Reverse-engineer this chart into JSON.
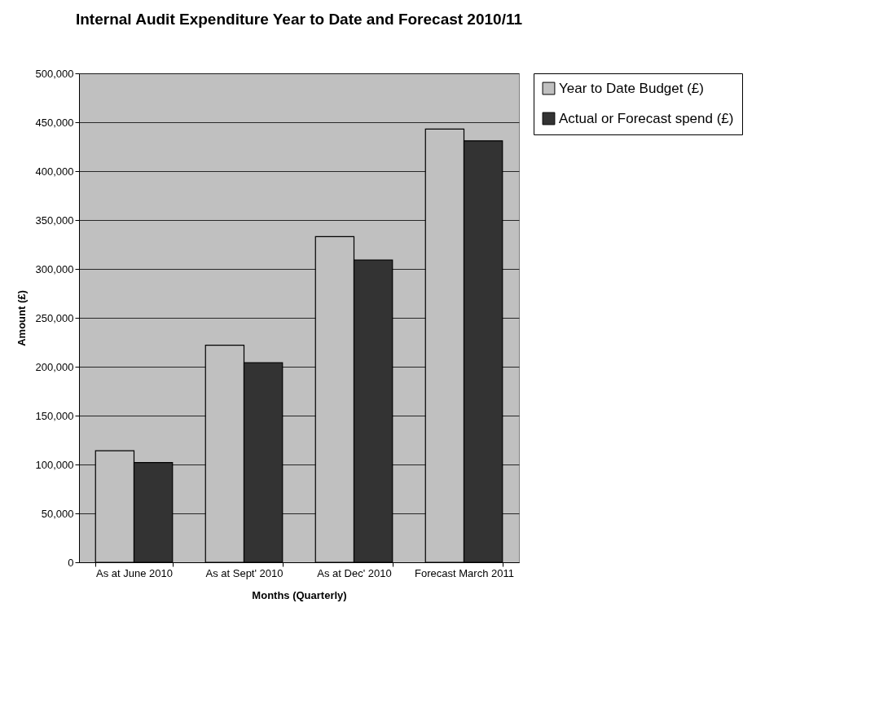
{
  "chart_data": {
    "type": "bar",
    "title": "Internal Audit Expenditure Year to Date and Forecast 2010/11",
    "xlabel": "Months (Quarterly)",
    "ylabel": "Amount (£)",
    "categories": [
      "As at June 2010",
      "As at Sept' 2010",
      "As at Dec' 2010",
      "Forecast March 2011"
    ],
    "series": [
      {
        "name": "Year to Date Budget (£)",
        "color": "#c0c0c0",
        "values": [
          114000,
          222000,
          333000,
          443000
        ]
      },
      {
        "name": "Actual or Forecast spend (£)",
        "color": "#333333",
        "values": [
          102000,
          204000,
          309000,
          431000
        ]
      }
    ],
    "ylim": [
      0,
      500000
    ],
    "yticks": [
      0,
      {
        "value": 50000,
        "label": "50,000"
      },
      {
        "value": 100000,
        "label": "100,000"
      },
      {
        "value": 150000,
        "label": "150,000"
      },
      {
        "value": 200000,
        "label": "200,000"
      },
      {
        "value": 250000,
        "label": "250,000"
      },
      {
        "value": 300000,
        "label": "300,000"
      },
      {
        "value": 350000,
        "label": "350,000"
      },
      {
        "value": 400000,
        "label": "400,000"
      },
      {
        "value": 450000,
        "label": "450,000"
      },
      {
        "value": 500000,
        "label": "500,000"
      }
    ],
    "grid": "y",
    "legend": "right"
  }
}
